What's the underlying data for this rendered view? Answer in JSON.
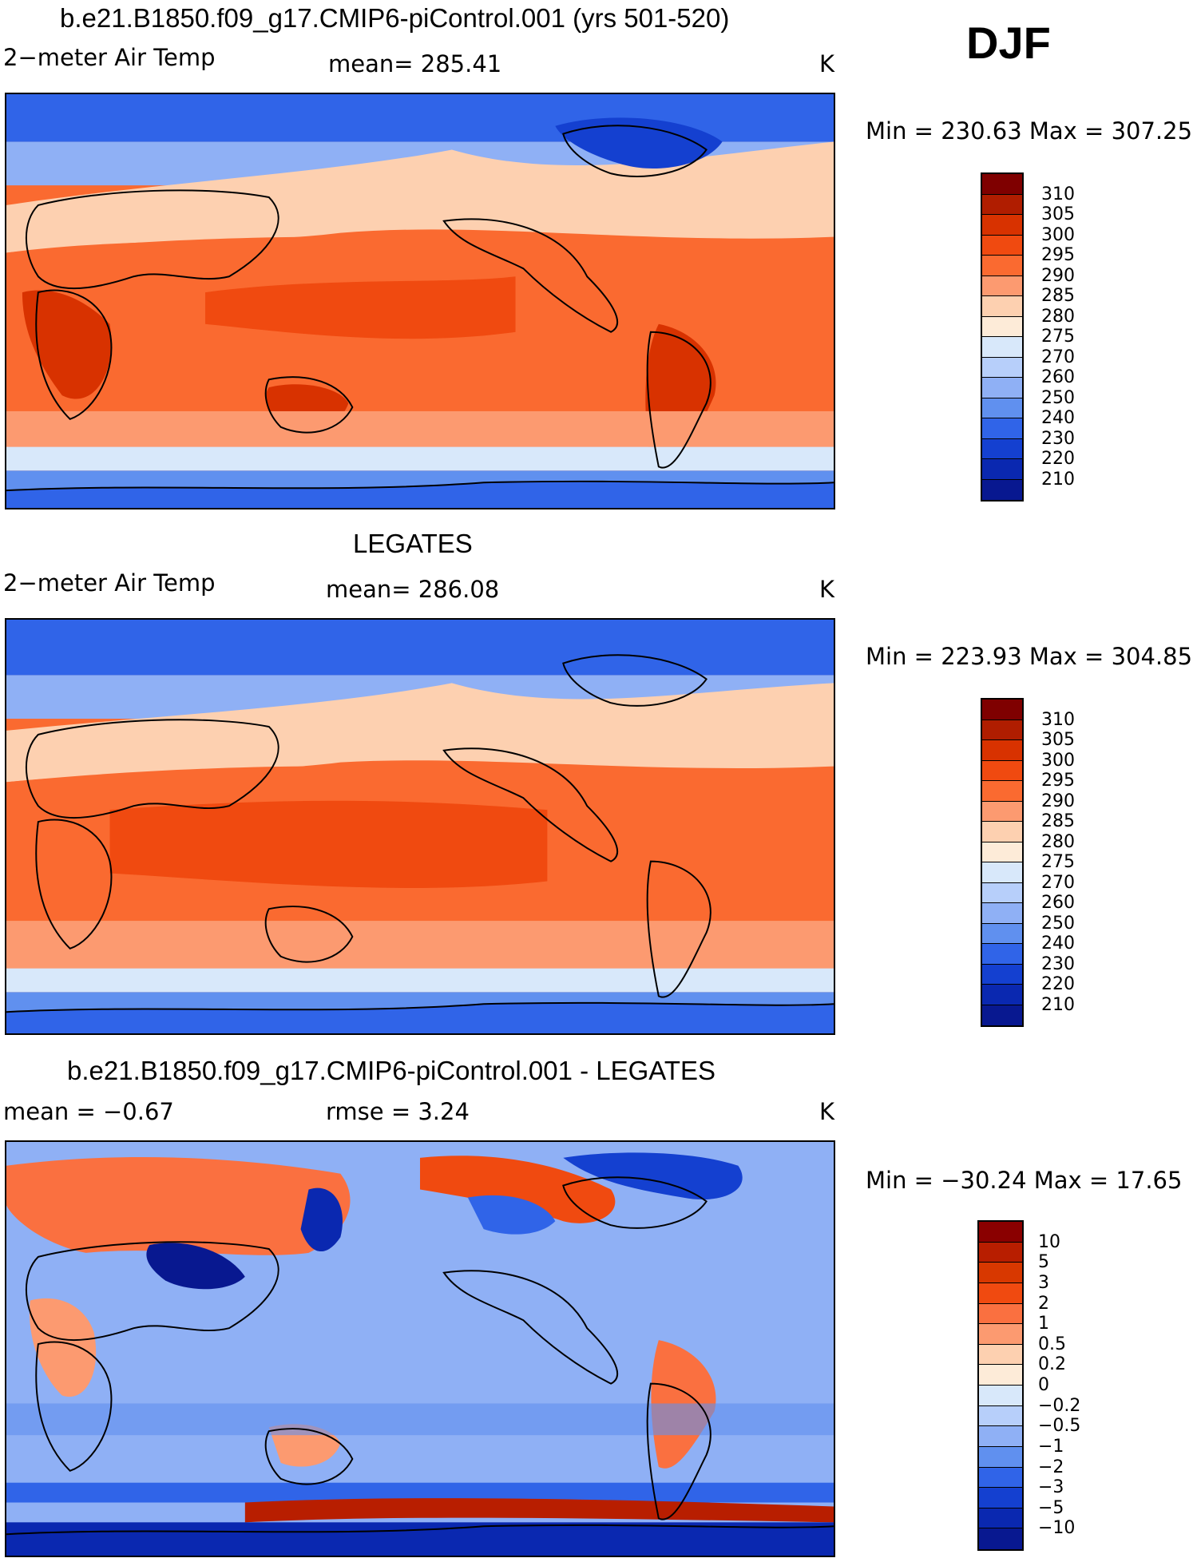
{
  "season": "DJF",
  "panels": [
    {
      "title": "b.e21.B1850.f09_g17.CMIP6-piControl.001 (yrs 501-520)",
      "variable": "2−meter Air Temp",
      "stat_left": "mean= 285.41",
      "units": "K",
      "minmax": "Min = 230.63 Max = 307.25",
      "colorbar": {
        "levels": [
          "310",
          "305",
          "300",
          "295",
          "290",
          "285",
          "280",
          "275",
          "270",
          "260",
          "250",
          "240",
          "230",
          "220",
          "210"
        ],
        "colors": [
          "#7f0000",
          "#b01d00",
          "#d83200",
          "#f04a10",
          "#fa6a30",
          "#fc9a70",
          "#fdd0b0",
          "#fdebd8",
          "#d8e8fa",
          "#b7cffa",
          "#8fb0f5",
          "#6090ef",
          "#3064e8",
          "#1440d0",
          "#0a28b0",
          "#081890"
        ]
      }
    },
    {
      "title": "LEGATES",
      "variable": "2−meter Air Temp",
      "stat_left": "mean= 286.08",
      "units": "K",
      "minmax": "Min = 223.93 Max = 304.85",
      "colorbar": {
        "levels": [
          "310",
          "305",
          "300",
          "295",
          "290",
          "285",
          "280",
          "275",
          "270",
          "260",
          "250",
          "240",
          "230",
          "220",
          "210"
        ],
        "colors": [
          "#7f0000",
          "#b01d00",
          "#d83200",
          "#f04a10",
          "#fa6a30",
          "#fc9a70",
          "#fdd0b0",
          "#fdebd8",
          "#d8e8fa",
          "#b7cffa",
          "#8fb0f5",
          "#6090ef",
          "#3064e8",
          "#1440d0",
          "#0a28b0",
          "#081890"
        ]
      }
    },
    {
      "title": "b.e21.B1850.f09_g17.CMIP6-piControl.001 - LEGATES",
      "variable": "mean =   −0.67",
      "stat_left": "rmse =     3.24",
      "units": "K",
      "minmax": "Min = −30.24 Max =   17.65",
      "colorbar": {
        "levels": [
          "10",
          "5",
          "3",
          "2",
          "1",
          "0.5",
          "0.2",
          "0",
          "−0.2",
          "−0.5",
          "−1",
          "−2",
          "−3",
          "−5",
          "−10"
        ],
        "colors": [
          "#8a0000",
          "#b81e00",
          "#d83800",
          "#f04a10",
          "#fa7040",
          "#fc9a70",
          "#fdd0b0",
          "#fdebd8",
          "#d8e8fa",
          "#b7cffa",
          "#8fb0f5",
          "#6090ef",
          "#3064e8",
          "#1440d0",
          "#0a28b0",
          "#081890"
        ]
      }
    }
  ]
}
